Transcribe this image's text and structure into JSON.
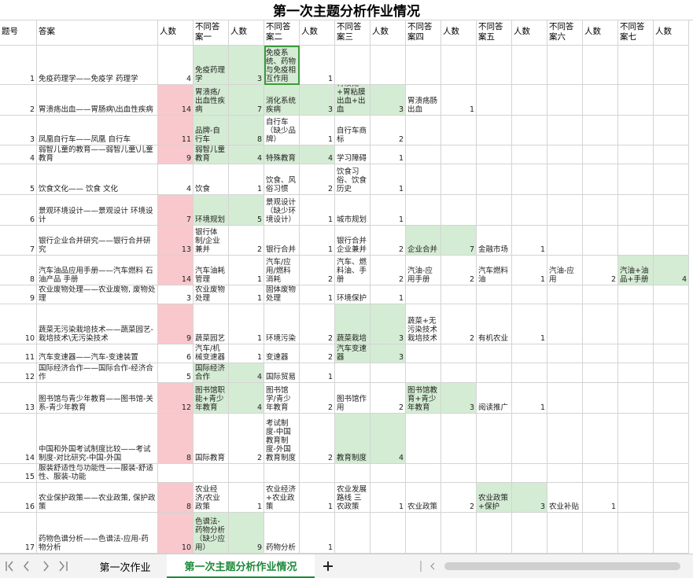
{
  "title": "第一次主题分析作业情况",
  "table": {
    "header": [
      "题号",
      "答案",
      "人数",
      "不同答案一",
      "人数",
      "不同答案二",
      "人数",
      "不同答案三",
      "人数",
      "不同答案四",
      "人数",
      "不同答案五",
      "人数",
      "不同答案六",
      "人数",
      "不同答案七",
      "人数"
    ],
    "rows": [
      [
        1,
        "免疫药理学——免疫学 药理学",
        4,
        "免疫药理学",
        3,
        "免疫系统、药物与免疫相互作用",
        1,
        null,
        null,
        null,
        null,
        null,
        null,
        null,
        null,
        null,
        null
      ],
      [
        2,
        "胃溃疡出血——胃肠病\\出血性疾病",
        14,
        "胃溃疡/出血性疾病",
        7,
        "消化系统疾病",
        3,
        "胃溃疡+胃粘膜出血+出血",
        3,
        "胃溃疡肠出血",
        1,
        null,
        null,
        null,
        null,
        null,
        null
      ],
      [
        3,
        "凤凰自行车——凤凰 自行车",
        11,
        "品牌-自行车",
        8,
        "自行车（缺少品牌）",
        1,
        "自行车商标",
        2,
        null,
        null,
        null,
        null,
        null,
        null,
        null,
        null
      ],
      [
        4,
        "弱智儿童的教育——弱智儿童\\儿童教育",
        9,
        "弱智儿童教育",
        4,
        "特殊教育",
        4,
        "学习障碍",
        1,
        null,
        null,
        null,
        null,
        null,
        null,
        null,
        null
      ],
      [
        5,
        "饮食文化—— 饮食 文化",
        4,
        "饮食",
        1,
        "饮食、风俗习惯",
        2,
        "饮食习俗、饮食历史",
        1,
        null,
        null,
        null,
        null,
        null,
        null,
        null,
        null
      ],
      [
        6,
        "景观环境设计——景观设计 环境设计",
        7,
        "环境规划",
        5,
        "景观设计（缺少环境设计）",
        1,
        "城市规划",
        1,
        null,
        null,
        null,
        null,
        null,
        null,
        null,
        null
      ],
      [
        7,
        "银行企业合并研究——银行合并研究",
        13,
        "银行体制/企业兼并",
        2,
        "银行合并",
        1,
        "银行合并企业兼并",
        2,
        "企业合并",
        7,
        "金融市场",
        1,
        null,
        null,
        null,
        null
      ],
      [
        8,
        "汽车油品应用手册——汽车燃料 石油产品 手册",
        14,
        "汽车油耗管理",
        1,
        "汽车/应用/燃料消耗",
        2,
        "汽车、燃料油、手册",
        2,
        "汽油-应用手册",
        2,
        "汽车燃料油",
        1,
        "汽油-应用",
        2,
        "汽油+油品+手册",
        4
      ],
      [
        9,
        "农业废物处理——农业废物, 废物处理",
        3,
        "农业废物处理",
        1,
        "固体废物处理",
        1,
        "环境保护",
        1,
        null,
        null,
        null,
        null,
        null,
        null,
        null,
        null
      ],
      [
        10,
        "蔬菜无污染栽培技术——蔬菜园艺-栽培技术\\无污染技术",
        9,
        "蔬菜园艺",
        1,
        "环境污染",
        2,
        "蔬菜栽培",
        3,
        "蔬菜+无污染技术 栽培技术",
        2,
        "有机农业",
        1,
        null,
        null,
        null,
        null
      ],
      [
        11,
        "汽车变速器——汽车-变速装置",
        6,
        "汽车/机械变速器",
        1,
        "变速器",
        2,
        "汽车变速器",
        3,
        null,
        null,
        null,
        null,
        null,
        null,
        null,
        null
      ],
      [
        12,
        "国际经济合作——国际合作-经济合作",
        5,
        "国际经济合作",
        4,
        "国际贸易",
        1,
        null,
        null,
        null,
        null,
        null,
        null,
        null,
        null,
        null,
        null
      ],
      [
        13,
        "图书馆与青少年教育——图书馆-关系-青少年教育",
        12,
        "图书馆职能+青少年教育",
        4,
        "图书馆学/青少年教育",
        2,
        "图书馆作用",
        2,
        "图书馆教育+青少年教育",
        3,
        "阅读推广",
        1,
        null,
        null,
        null,
        null
      ],
      [
        14,
        "中国和外国考试制度比较——考试制度-对比研究-中国-外国",
        8,
        "国际教育",
        2,
        "考试制度-中国教育制度-外国教育制度",
        2,
        "教育制度",
        4,
        null,
        null,
        null,
        null,
        null,
        null,
        null,
        null
      ],
      [
        15,
        "服装舒适性与功能性——服装-舒适性、服装-功能",
        null,
        null,
        null,
        null,
        null,
        null,
        null,
        null,
        null,
        null,
        null,
        null,
        null,
        null,
        null
      ],
      [
        16,
        "农业保护政策——农业政策, 保护政策",
        8,
        "农业经济/农业政策",
        1,
        "农业经济+农业政策",
        1,
        "农业发展路线 三农政策",
        1,
        "农业政策",
        2,
        "农业政策+保护",
        3,
        "农业补贴",
        1,
        null,
        null
      ],
      [
        17,
        "药物色谱分析——色谱法-应用-药物分析",
        10,
        "色谱法-药物分析（缺少应用）",
        9,
        "药物分析",
        1,
        null,
        null,
        null,
        null,
        null,
        null,
        null,
        null,
        null,
        null
      ]
    ],
    "fills": {
      "#f8c8cc": [
        [
          1,
          2
        ],
        [
          2,
          2
        ],
        [
          3,
          2
        ],
        [
          5,
          2
        ],
        [
          6,
          2
        ],
        [
          7,
          2
        ],
        [
          9,
          2
        ],
        [
          12,
          2
        ],
        [
          13,
          2
        ],
        [
          15,
          2
        ],
        [
          16,
          2
        ]
      ],
      "#d5ecd4": [
        [
          0,
          3
        ],
        [
          0,
          4
        ],
        [
          0,
          5
        ],
        [
          1,
          3
        ],
        [
          1,
          4
        ],
        [
          1,
          5
        ],
        [
          1,
          6
        ],
        [
          1,
          7
        ],
        [
          1,
          8
        ],
        [
          2,
          3
        ],
        [
          2,
          4
        ],
        [
          3,
          3
        ],
        [
          3,
          4
        ],
        [
          3,
          5
        ],
        [
          3,
          6
        ],
        [
          5,
          3
        ],
        [
          5,
          4
        ],
        [
          6,
          9
        ],
        [
          6,
          10
        ],
        [
          7,
          15
        ],
        [
          7,
          16
        ],
        [
          9,
          7
        ],
        [
          9,
          8
        ],
        [
          10,
          7
        ],
        [
          10,
          8
        ],
        [
          11,
          3
        ],
        [
          11,
          4
        ],
        [
          12,
          3
        ],
        [
          12,
          4
        ],
        [
          12,
          9
        ],
        [
          12,
          10
        ],
        [
          13,
          7
        ],
        [
          13,
          8
        ],
        [
          15,
          11
        ],
        [
          15,
          12
        ],
        [
          16,
          3
        ],
        [
          16,
          4
        ]
      ]
    }
  },
  "tabs": [
    "第一次作业",
    "第一次主题分析作业情况"
  ],
  "active_tab": 1
}
